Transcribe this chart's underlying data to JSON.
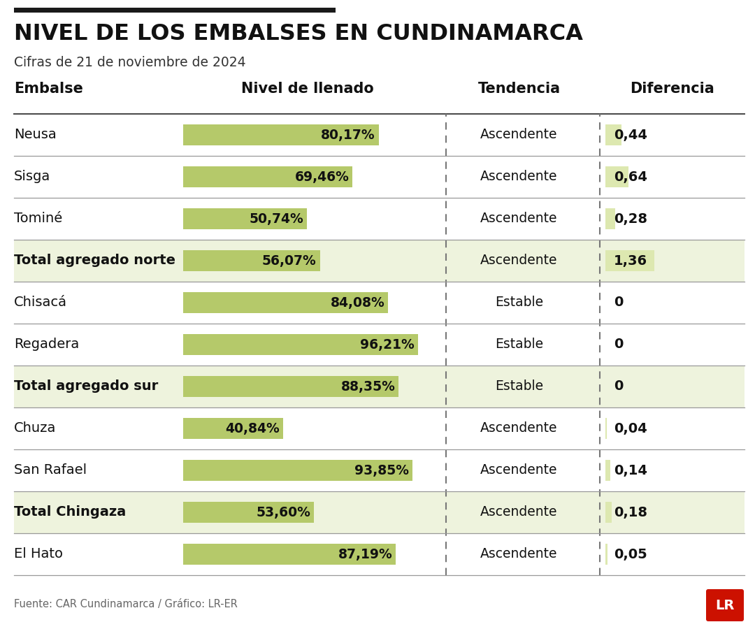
{
  "title": "NIVEL DE LOS EMBALSES EN CUNDINAMARCA",
  "subtitle": "Cifras de 21 de noviembre de 2024",
  "col_headers": [
    "Embalse",
    "Nivel de llenado",
    "Tendencia",
    "Diferencia"
  ],
  "rows": [
    {
      "name": "Neusa",
      "level": 80.17,
      "level_str": "80,17%",
      "tendency": "Ascendente",
      "diff": "0,44",
      "diff_val": 0.44,
      "bold": false,
      "highlight": false
    },
    {
      "name": "Sisga",
      "level": 69.46,
      "level_str": "69,46%",
      "tendency": "Ascendente",
      "diff": "0,64",
      "diff_val": 0.64,
      "bold": false,
      "highlight": false
    },
    {
      "name": "Tominé",
      "level": 50.74,
      "level_str": "50,74%",
      "tendency": "Ascendente",
      "diff": "0,28",
      "diff_val": 0.28,
      "bold": false,
      "highlight": false
    },
    {
      "name": "Total agregado norte",
      "level": 56.07,
      "level_str": "56,07%",
      "tendency": "Ascendente",
      "diff": "1,36",
      "diff_val": 1.36,
      "bold": true,
      "highlight": true
    },
    {
      "name": "Chisacá",
      "level": 84.08,
      "level_str": "84,08%",
      "tendency": "Estable",
      "diff": "0",
      "diff_val": 0.0,
      "bold": false,
      "highlight": false
    },
    {
      "name": "Regadera",
      "level": 96.21,
      "level_str": "96,21%",
      "tendency": "Estable",
      "diff": "0",
      "diff_val": 0.0,
      "bold": false,
      "highlight": false
    },
    {
      "name": "Total agregado sur",
      "level": 88.35,
      "level_str": "88,35%",
      "tendency": "Estable",
      "diff": "0",
      "diff_val": 0.0,
      "bold": true,
      "highlight": true
    },
    {
      "name": "Chuza",
      "level": 40.84,
      "level_str": "40,84%",
      "tendency": "Ascendente",
      "diff": "0,04",
      "diff_val": 0.04,
      "bold": false,
      "highlight": false
    },
    {
      "name": "San Rafael",
      "level": 93.85,
      "level_str": "93,85%",
      "tendency": "Ascendente",
      "diff": "0,14",
      "diff_val": 0.14,
      "bold": false,
      "highlight": false
    },
    {
      "name": "Total Chingaza",
      "level": 53.6,
      "level_str": "53,60%",
      "tendency": "Ascendente",
      "diff": "0,18",
      "diff_val": 0.18,
      "bold": true,
      "highlight": true
    },
    {
      "name": "El Hato",
      "level": 87.19,
      "level_str": "87,19%",
      "tendency": "Ascendente",
      "diff": "0,05",
      "diff_val": 0.05,
      "bold": false,
      "highlight": false
    }
  ],
  "bar_color": "#b5c96a",
  "diff_bg_color": "#dde8b0",
  "highlight_row_bg": "#eef3dd",
  "top_bar_color": "#1a1a1a",
  "background_color": "#ffffff",
  "separator_color": "#999999",
  "footer": "Fuente: CAR Cundinamarca / Gráfico: LR-ER",
  "logo_bg": "#cc1100",
  "logo_text": "LR",
  "diff_max": 1.36
}
